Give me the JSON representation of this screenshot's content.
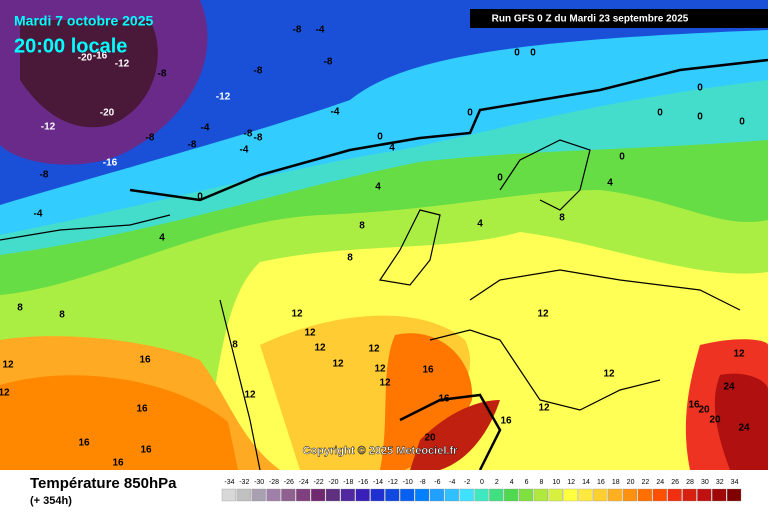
{
  "header": {
    "date": "Mardi 7 octobre 2025",
    "time": "20:00 locale",
    "run": "Run GFS 0 Z du Mardi 23 septembre 2025"
  },
  "copyright": "Copyright © 2025 Meteociel.fr",
  "legend": {
    "title": "Température 850hPa",
    "subtitle": "(+ 354h)",
    "values": [
      -34,
      -32,
      -30,
      -28,
      -26,
      -24,
      -22,
      -20,
      -18,
      -16,
      -14,
      -12,
      -10,
      -8,
      -6,
      -4,
      -2,
      0,
      2,
      4,
      6,
      8,
      10,
      12,
      14,
      16,
      18,
      20,
      22,
      24,
      26,
      28,
      30,
      32,
      34
    ],
    "colors": [
      "#d8d8d8",
      "#c0c0c0",
      "#a8a0b0",
      "#a080a8",
      "#906090",
      "#804080",
      "#702870",
      "#603080",
      "#5028a0",
      "#3820b8",
      "#2030d0",
      "#1048e0",
      "#0860f0",
      "#0080ff",
      "#20a0ff",
      "#30c0ff",
      "#40e0ff",
      "#40e8c0",
      "#40e080",
      "#50d850",
      "#80e040",
      "#b0e840",
      "#d8f040",
      "#ffff40",
      "#ffe840",
      "#ffd030",
      "#ffb020",
      "#ff9010",
      "#ff7000",
      "#ff5000",
      "#f03010",
      "#d82010",
      "#c01010",
      "#a00808",
      "#800000"
    ]
  },
  "map": {
    "labels": [
      -20,
      -16,
      -12,
      -8,
      -12,
      -20,
      -16,
      -8,
      -4,
      -12,
      -8,
      -8,
      -4,
      -8,
      -4,
      -4,
      -8,
      -8,
      -4,
      -8,
      -8,
      0,
      0,
      0,
      0,
      4,
      4,
      0,
      4,
      8,
      8,
      4,
      0,
      8,
      4,
      0,
      0,
      0,
      0,
      0,
      8,
      8,
      12,
      12,
      12,
      12,
      12,
      12,
      12,
      16,
      16,
      12,
      12,
      12,
      24,
      24,
      20,
      20,
      16,
      12,
      16,
      20,
      16,
      16,
      16,
      16,
      16,
      12,
      12,
      12,
      8
    ]
  }
}
